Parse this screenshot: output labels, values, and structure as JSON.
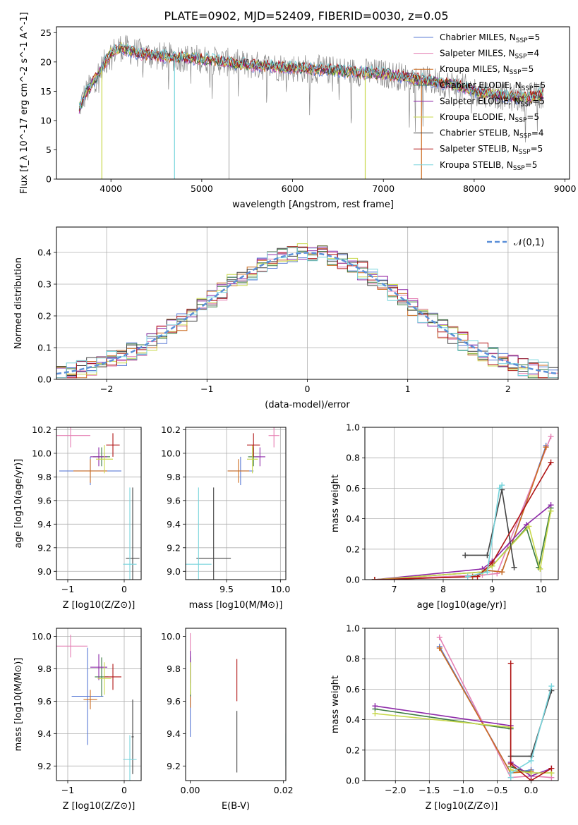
{
  "figure": {
    "title": "PLATE=0902, MJD=52409, FIBERID=0030, z=0.05"
  },
  "models": [
    {
      "label": "Chabrier MILES",
      "n_ssp": 5,
      "color": "#5b7bd6"
    },
    {
      "label": "Salpeter MILES",
      "n_ssp": 4,
      "color": "#e57fb3"
    },
    {
      "label": "Kroupa MILES",
      "n_ssp": 5,
      "color": "#cc6c20"
    },
    {
      "label": "Chabrier ELODIE",
      "n_ssp": 5,
      "color": "#3a7a40"
    },
    {
      "label": "Salpeter ELODIE",
      "n_ssp": 5,
      "color": "#8e2aa9"
    },
    {
      "label": "Kroupa ELODIE",
      "n_ssp": 5,
      "color": "#c8d84a"
    },
    {
      "label": "Chabrier STELIB",
      "n_ssp": 4,
      "color": "#444444"
    },
    {
      "label": "Salpeter STELIB",
      "n_ssp": 5,
      "color": "#b01515"
    },
    {
      "label": "Kroupa STELIB",
      "n_ssp": 5,
      "color": "#77d4dc"
    }
  ],
  "chart_data": [
    {
      "id": "spectrum",
      "type": "line",
      "title": "PLATE=0902, MJD=52409, FIBERID=0030, z=0.05",
      "xlabel": "wavelength [Angstrom, rest frame]",
      "ylabel": "Flux [f_λ 10^-17 erg cm^-2 s^-1 A^-1]",
      "xlim": [
        3400,
        9050
      ],
      "ylim": [
        0,
        26
      ],
      "xticks": [
        4000,
        5000,
        6000,
        7000,
        8000,
        9000
      ],
      "yticks": [
        0,
        5,
        10,
        15,
        20,
        25
      ],
      "legend_position": "top-right",
      "data_color": "#888888",
      "continuum": {
        "x": [
          3650,
          3700,
          3800,
          3900,
          4000,
          4100,
          4300,
          4500,
          5000,
          5500,
          6000,
          6500,
          7000,
          7200,
          7400,
          7600,
          7800,
          8000,
          8200,
          8400,
          8600,
          8750
        ],
        "y": [
          12,
          14,
          16.5,
          19,
          21.5,
          22.5,
          21.5,
          21,
          20.5,
          19.5,
          19,
          18.5,
          18,
          17.5,
          17,
          16.5,
          16,
          15,
          14.5,
          14,
          14,
          14.5
        ]
      },
      "model_dropouts": [
        {
          "x": 3900,
          "y_min": 0,
          "model": "Kroupa ELODIE"
        },
        {
          "x": 4700,
          "y_min": 0,
          "model": "Kroupa STELIB"
        },
        {
          "x": 6800,
          "y_min": 0,
          "model": "Kroupa ELODIE"
        },
        {
          "x": 7420,
          "y_min": 0,
          "model": "Kroupa MILES"
        }
      ]
    },
    {
      "id": "residuals",
      "type": "histogram",
      "xlabel": "(data-model)/error",
      "ylabel": "Normed distribution",
      "xlim": [
        -2.5,
        2.5
      ],
      "ylim": [
        0,
        0.48
      ],
      "xticks": [
        -2,
        -1,
        0,
        1,
        2
      ],
      "yticks": [
        0.0,
        0.1,
        0.2,
        0.3,
        0.4
      ],
      "grid": true,
      "legend_position": "top-right",
      "reference": {
        "label": "𝒩(0,1)",
        "mean": 0,
        "sigma": 1,
        "color": "#5b8fd8",
        "style": "dashed"
      },
      "bin_width": 0.1
    },
    {
      "id": "age-vs-metallicity",
      "type": "errorbar",
      "xlabel": "Z [log10(Z/Z⊙)]",
      "ylabel": "age [log10(age/yr)]",
      "xlim": [
        -1.2,
        0.3
      ],
      "ylim": [
        8.93,
        10.22
      ],
      "xticks": [
        -1,
        0
      ],
      "yticks": [
        9.0,
        9.2,
        9.4,
        9.6,
        9.8,
        10.0,
        10.2
      ],
      "grid": true,
      "points": [
        {
          "model": "Chabrier MILES",
          "x": -0.6,
          "y": 9.85,
          "xerr": 0.55,
          "yerr": 0.12
        },
        {
          "model": "Salpeter MILES",
          "x": -0.95,
          "y": 10.15,
          "xerr": 0.35,
          "yerr": 0.1
        },
        {
          "model": "Kroupa MILES",
          "x": -0.6,
          "y": 9.85,
          "xerr": 0.3,
          "yerr": 0.1
        },
        {
          "model": "Chabrier ELODIE",
          "x": -0.4,
          "y": 9.97,
          "xerr": 0.15,
          "yerr": 0.08
        },
        {
          "model": "Salpeter ELODIE",
          "x": -0.45,
          "y": 9.97,
          "xerr": 0.15,
          "yerr": 0.08
        },
        {
          "model": "Kroupa ELODIE",
          "x": -0.35,
          "y": 9.95,
          "xerr": 0.15,
          "yerr": 0.12
        },
        {
          "model": "Chabrier STELIB",
          "x": 0.15,
          "y": 9.11,
          "xerr": 0.12,
          "yerr": 0.6
        },
        {
          "model": "Salpeter STELIB",
          "x": -0.2,
          "y": 10.07,
          "xerr": 0.12,
          "yerr": 0.1
        },
        {
          "model": "Kroupa STELIB",
          "x": 0.1,
          "y": 9.06,
          "xerr": 0.12,
          "yerr": 0.65
        }
      ]
    },
    {
      "id": "age-vs-mass",
      "type": "errorbar",
      "xlabel": "mass [log10(M/M⊙)]",
      "ylabel": "",
      "xlim": [
        9.12,
        10.05
      ],
      "ylim": [
        8.93,
        10.22
      ],
      "xticks": [
        9.5,
        10.0
      ],
      "yticks": [
        9.0,
        9.2,
        9.4,
        9.6,
        9.8,
        10.0,
        10.2
      ],
      "grid": true,
      "points": [
        {
          "model": "Chabrier MILES",
          "x": 9.63,
          "y": 9.85,
          "xerr": 0.12,
          "yerr": 0.12
        },
        {
          "model": "Salpeter MILES",
          "x": 9.94,
          "y": 10.15,
          "xerr": 0.05,
          "yerr": 0.1
        },
        {
          "model": "Kroupa MILES",
          "x": 9.61,
          "y": 9.85,
          "xerr": 0.1,
          "yerr": 0.1
        },
        {
          "model": "Chabrier ELODIE",
          "x": 9.75,
          "y": 9.97,
          "xerr": 0.05,
          "yerr": 0.08
        },
        {
          "model": "Salpeter ELODIE",
          "x": 9.81,
          "y": 9.97,
          "xerr": 0.05,
          "yerr": 0.08
        },
        {
          "model": "Kroupa ELODIE",
          "x": 9.74,
          "y": 9.95,
          "xerr": 0.05,
          "yerr": 0.12
        },
        {
          "model": "Chabrier STELIB",
          "x": 9.38,
          "y": 9.11,
          "xerr": 0.16,
          "yerr": 0.6
        },
        {
          "model": "Salpeter STELIB",
          "x": 9.75,
          "y": 10.07,
          "xerr": 0.06,
          "yerr": 0.1
        },
        {
          "model": "Kroupa STELIB",
          "x": 9.24,
          "y": 9.06,
          "xerr": 0.12,
          "yerr": 0.65
        }
      ]
    },
    {
      "id": "mass-weight-vs-age",
      "type": "line",
      "xlabel": "age [log10(age/yr)]",
      "ylabel": "mass weight",
      "xlim": [
        6.4,
        10.35
      ],
      "ylim": [
        0,
        1.0
      ],
      "xticks": [
        7,
        8,
        9,
        10
      ],
      "yticks": [
        0.0,
        0.2,
        0.4,
        0.6,
        0.8,
        1.0
      ],
      "grid": true,
      "series": [
        {
          "name": "Chabrier MILES",
          "x": [
            6.6,
            8.6,
            8.9,
            9.2,
            10.1
          ],
          "y": [
            0.0,
            0.02,
            0.06,
            0.05,
            0.88
          ]
        },
        {
          "name": "Salpeter MILES",
          "x": [
            6.6,
            8.8,
            9.1,
            10.2
          ],
          "y": [
            0.0,
            0.03,
            0.04,
            0.94
          ]
        },
        {
          "name": "Kroupa MILES",
          "x": [
            6.6,
            8.6,
            8.9,
            9.2,
            10.1
          ],
          "y": [
            0.0,
            0.02,
            0.06,
            0.05,
            0.87
          ]
        },
        {
          "name": "Chabrier ELODIE",
          "x": [
            6.6,
            8.8,
            9.0,
            9.7,
            9.95,
            10.2
          ],
          "y": [
            0.0,
            0.05,
            0.09,
            0.34,
            0.08,
            0.47
          ]
        },
        {
          "name": "Salpeter ELODIE",
          "x": [
            6.6,
            8.8,
            9.0,
            9.7,
            10.2
          ],
          "y": [
            0.0,
            0.07,
            0.12,
            0.36,
            0.49
          ]
        },
        {
          "name": "Kroupa ELODIE",
          "x": [
            6.6,
            8.8,
            9.0,
            9.75,
            9.98,
            10.2
          ],
          "y": [
            0.0,
            0.05,
            0.09,
            0.35,
            0.07,
            0.45
          ]
        },
        {
          "name": "Chabrier STELIB",
          "x": [
            8.45,
            8.9,
            9.2,
            9.45
          ],
          "y": [
            0.16,
            0.16,
            0.59,
            0.08
          ]
        },
        {
          "name": "Salpeter STELIB",
          "x": [
            6.6,
            8.7,
            9.0,
            10.2
          ],
          "y": [
            0.0,
            0.02,
            0.11,
            0.77
          ]
        },
        {
          "name": "Kroupa STELIB",
          "x": [
            8.5,
            8.9,
            9.15,
            9.2
          ],
          "y": [
            0.02,
            0.05,
            0.6,
            0.62
          ]
        }
      ]
    },
    {
      "id": "mass-vs-metallicity",
      "type": "errorbar",
      "xlabel": "Z [log10(Z/Z⊙)]",
      "ylabel": "mass [log10(M/M⊙)]",
      "xlim": [
        -1.2,
        0.3
      ],
      "ylim": [
        9.11,
        10.05
      ],
      "xticks": [
        -1,
        0
      ],
      "yticks": [
        9.2,
        9.4,
        9.6,
        9.8,
        10.0
      ],
      "grid": true,
      "points": [
        {
          "model": "Chabrier MILES",
          "x": -0.65,
          "y": 9.63,
          "xerr": 0.28,
          "yerr": 0.3
        },
        {
          "model": "Salpeter MILES",
          "x": -0.95,
          "y": 9.94,
          "xerr": 0.3,
          "yerr": 0.07
        },
        {
          "model": "Kroupa MILES",
          "x": -0.6,
          "y": 9.61,
          "xerr": 0.12,
          "yerr": 0.06
        },
        {
          "model": "Chabrier ELODIE",
          "x": -0.4,
          "y": 9.75,
          "xerr": 0.12,
          "yerr": 0.12
        },
        {
          "model": "Salpeter ELODIE",
          "x": -0.45,
          "y": 9.81,
          "xerr": 0.15,
          "yerr": 0.08
        },
        {
          "model": "Kroupa ELODIE",
          "x": -0.35,
          "y": 9.74,
          "xerr": 0.12,
          "yerr": 0.1
        },
        {
          "model": "Chabrier STELIB",
          "x": 0.15,
          "y": 9.38,
          "xerr": 0.02,
          "yerr": 0.23
        },
        {
          "model": "Salpeter STELIB",
          "x": -0.2,
          "y": 9.75,
          "xerr": 0.15,
          "yerr": 0.08
        },
        {
          "model": "Kroupa STELIB",
          "x": 0.1,
          "y": 9.24,
          "xerr": 0.12,
          "yerr": 0.15
        }
      ]
    },
    {
      "id": "mass-vs-ebv",
      "type": "errorbar",
      "xlabel": "E(B-V)",
      "ylabel": "",
      "xlim": [
        -0.001,
        0.0205
      ],
      "ylim": [
        9.11,
        10.05
      ],
      "xticks": [
        0.0,
        0.02
      ],
      "yticks": [
        9.2,
        9.4,
        9.6,
        9.8,
        10.0
      ],
      "grid": false,
      "points": [
        {
          "model": "Chabrier MILES",
          "x": 0.0,
          "y": 9.63,
          "xerr": 0,
          "yerr": 0.25
        },
        {
          "model": "Salpeter MILES",
          "x": 0.0,
          "y": 9.94,
          "xerr": 0,
          "yerr": 0.08
        },
        {
          "model": "Kroupa MILES",
          "x": 0.0,
          "y": 9.61,
          "xerr": 0,
          "yerr": 0.05
        },
        {
          "model": "Chabrier ELODIE",
          "x": 0.0,
          "y": 9.75,
          "xerr": 0,
          "yerr": 0.12
        },
        {
          "model": "Salpeter ELODIE",
          "x": 0.0,
          "y": 9.81,
          "xerr": 0,
          "yerr": 0.1
        },
        {
          "model": "Kroupa ELODIE",
          "x": 0.0,
          "y": 9.74,
          "xerr": 0,
          "yerr": 0.1
        },
        {
          "model": "Chabrier STELIB",
          "x": 0.01,
          "y": 9.35,
          "xerr": 0,
          "yerr": 0.19
        },
        {
          "model": "Salpeter STELIB",
          "x": 0.01,
          "y": 9.73,
          "xerr": 0,
          "yerr": 0.13
        },
        {
          "model": "Kroupa STELIB",
          "x": 0.0205,
          "y": 9.3,
          "xerr": 0,
          "yerr": 0.1
        }
      ]
    },
    {
      "id": "mass-weight-vs-metallicity",
      "type": "line",
      "xlabel": "Z [log10(Z/Z⊙)]",
      "ylabel": "mass weight",
      "xlim": [
        -2.45,
        0.4
      ],
      "ylim": [
        0,
        1.0
      ],
      "xticks": [
        -2.0,
        -1.5,
        -1.0,
        -0.5,
        0.0
      ],
      "yticks": [
        0.0,
        0.2,
        0.4,
        0.6,
        0.8,
        1.0
      ],
      "grid": true,
      "series": [
        {
          "name": "Chabrier MILES",
          "x": [
            -1.35,
            -0.3,
            0.0
          ],
          "y": [
            0.88,
            0.05,
            0.07
          ]
        },
        {
          "name": "Salpeter MILES",
          "x": [
            -1.35,
            -0.3,
            0.0,
            0.3
          ],
          "y": [
            0.94,
            0.02,
            0.03,
            0.02
          ]
        },
        {
          "name": "Kroupa MILES",
          "x": [
            -1.35,
            -0.3,
            0.0
          ],
          "y": [
            0.87,
            0.05,
            0.06
          ]
        },
        {
          "name": "Chabrier ELODIE",
          "x": [
            -2.3,
            -0.3,
            -0.3,
            0.0,
            0.3
          ],
          "y": [
            0.47,
            0.34,
            0.09,
            0.05,
            0.05
          ]
        },
        {
          "name": "Salpeter ELODIE",
          "x": [
            -2.3,
            -0.3,
            -0.3,
            0.0,
            0.3
          ],
          "y": [
            0.49,
            0.36,
            0.12,
            0.03,
            0.08
          ]
        },
        {
          "name": "Kroupa ELODIE",
          "x": [
            -2.3,
            -0.3,
            -0.3,
            0.0,
            0.3
          ],
          "y": [
            0.44,
            0.35,
            0.07,
            0.05,
            0.05
          ]
        },
        {
          "name": "Chabrier STELIB",
          "x": [
            -0.3,
            0.0,
            0.3
          ],
          "y": [
            0.16,
            0.16,
            0.59
          ]
        },
        {
          "name": "Salpeter STELIB",
          "x": [
            -0.3,
            -0.3,
            0.0,
            0.3
          ],
          "y": [
            0.77,
            0.11,
            0.0,
            0.08
          ]
        },
        {
          "name": "Kroupa STELIB",
          "x": [
            -0.3,
            -0.3,
            0.0,
            0.3
          ],
          "y": [
            0.02,
            0.05,
            0.13,
            0.62
          ]
        }
      ]
    }
  ]
}
